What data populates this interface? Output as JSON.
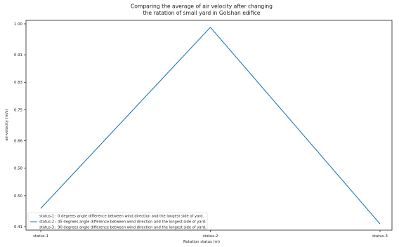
{
  "chart_data": {
    "type": "line",
    "title_lines": [
      "Comparing the average of air velocity after changing",
      "the ratation of small yard in Golshan edifice"
    ],
    "xlabel": "Rotation status (m)",
    "ylabel": "air-velocity (m/s)",
    "categories": [
      "status-1",
      "status-2",
      "status-3"
    ],
    "ytick_labels": [
      "0.41",
      "0.50",
      "0.58",
      "0.66",
      "0.75",
      "0.83",
      "0.91",
      "1.00"
    ],
    "ylim": [
      0.41,
      1.0
    ],
    "grid": false,
    "legend_position": "lower-left",
    "series": [
      {
        "values": [
          0.463,
          0.99,
          0.418
        ],
        "color": "#1f77b4"
      }
    ],
    "legend_entries": [
      "status-1 : 0 degrees angle difference between wind direction and the longest side of yard.",
      "status-2 : 45 degrees angle difference between wind direction and the longest side of yard.",
      "status-3 : 90 degrees angle difference between wind direction and the longest side of yard."
    ]
  }
}
